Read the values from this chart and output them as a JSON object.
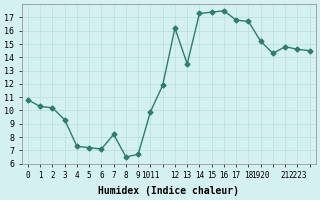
{
  "x": [
    0,
    1,
    2,
    3,
    4,
    5,
    6,
    7,
    8,
    9,
    10,
    11,
    12,
    13,
    14,
    15,
    16,
    17,
    18,
    19,
    20,
    21,
    22,
    23
  ],
  "y": [
    10.8,
    10.3,
    10.2,
    9.3,
    7.3,
    7.2,
    7.1,
    8.2,
    6.5,
    6.7,
    9.9,
    11.9,
    16.2,
    13.5,
    17.3,
    17.4,
    17.5,
    16.8,
    16.7,
    15.2,
    14.3,
    14.8,
    14.6,
    14.5
  ],
  "xlabel": "Humidex (Indice chaleur)",
  "xlim": [
    -0.5,
    23.5
  ],
  "ylim": [
    6,
    18
  ],
  "yticks": [
    6,
    7,
    8,
    9,
    10,
    11,
    12,
    13,
    14,
    15,
    16,
    17
  ],
  "line_color": "#2d7d6e",
  "bg_color": "#d4f0f0",
  "grid_color": "#b8dede"
}
